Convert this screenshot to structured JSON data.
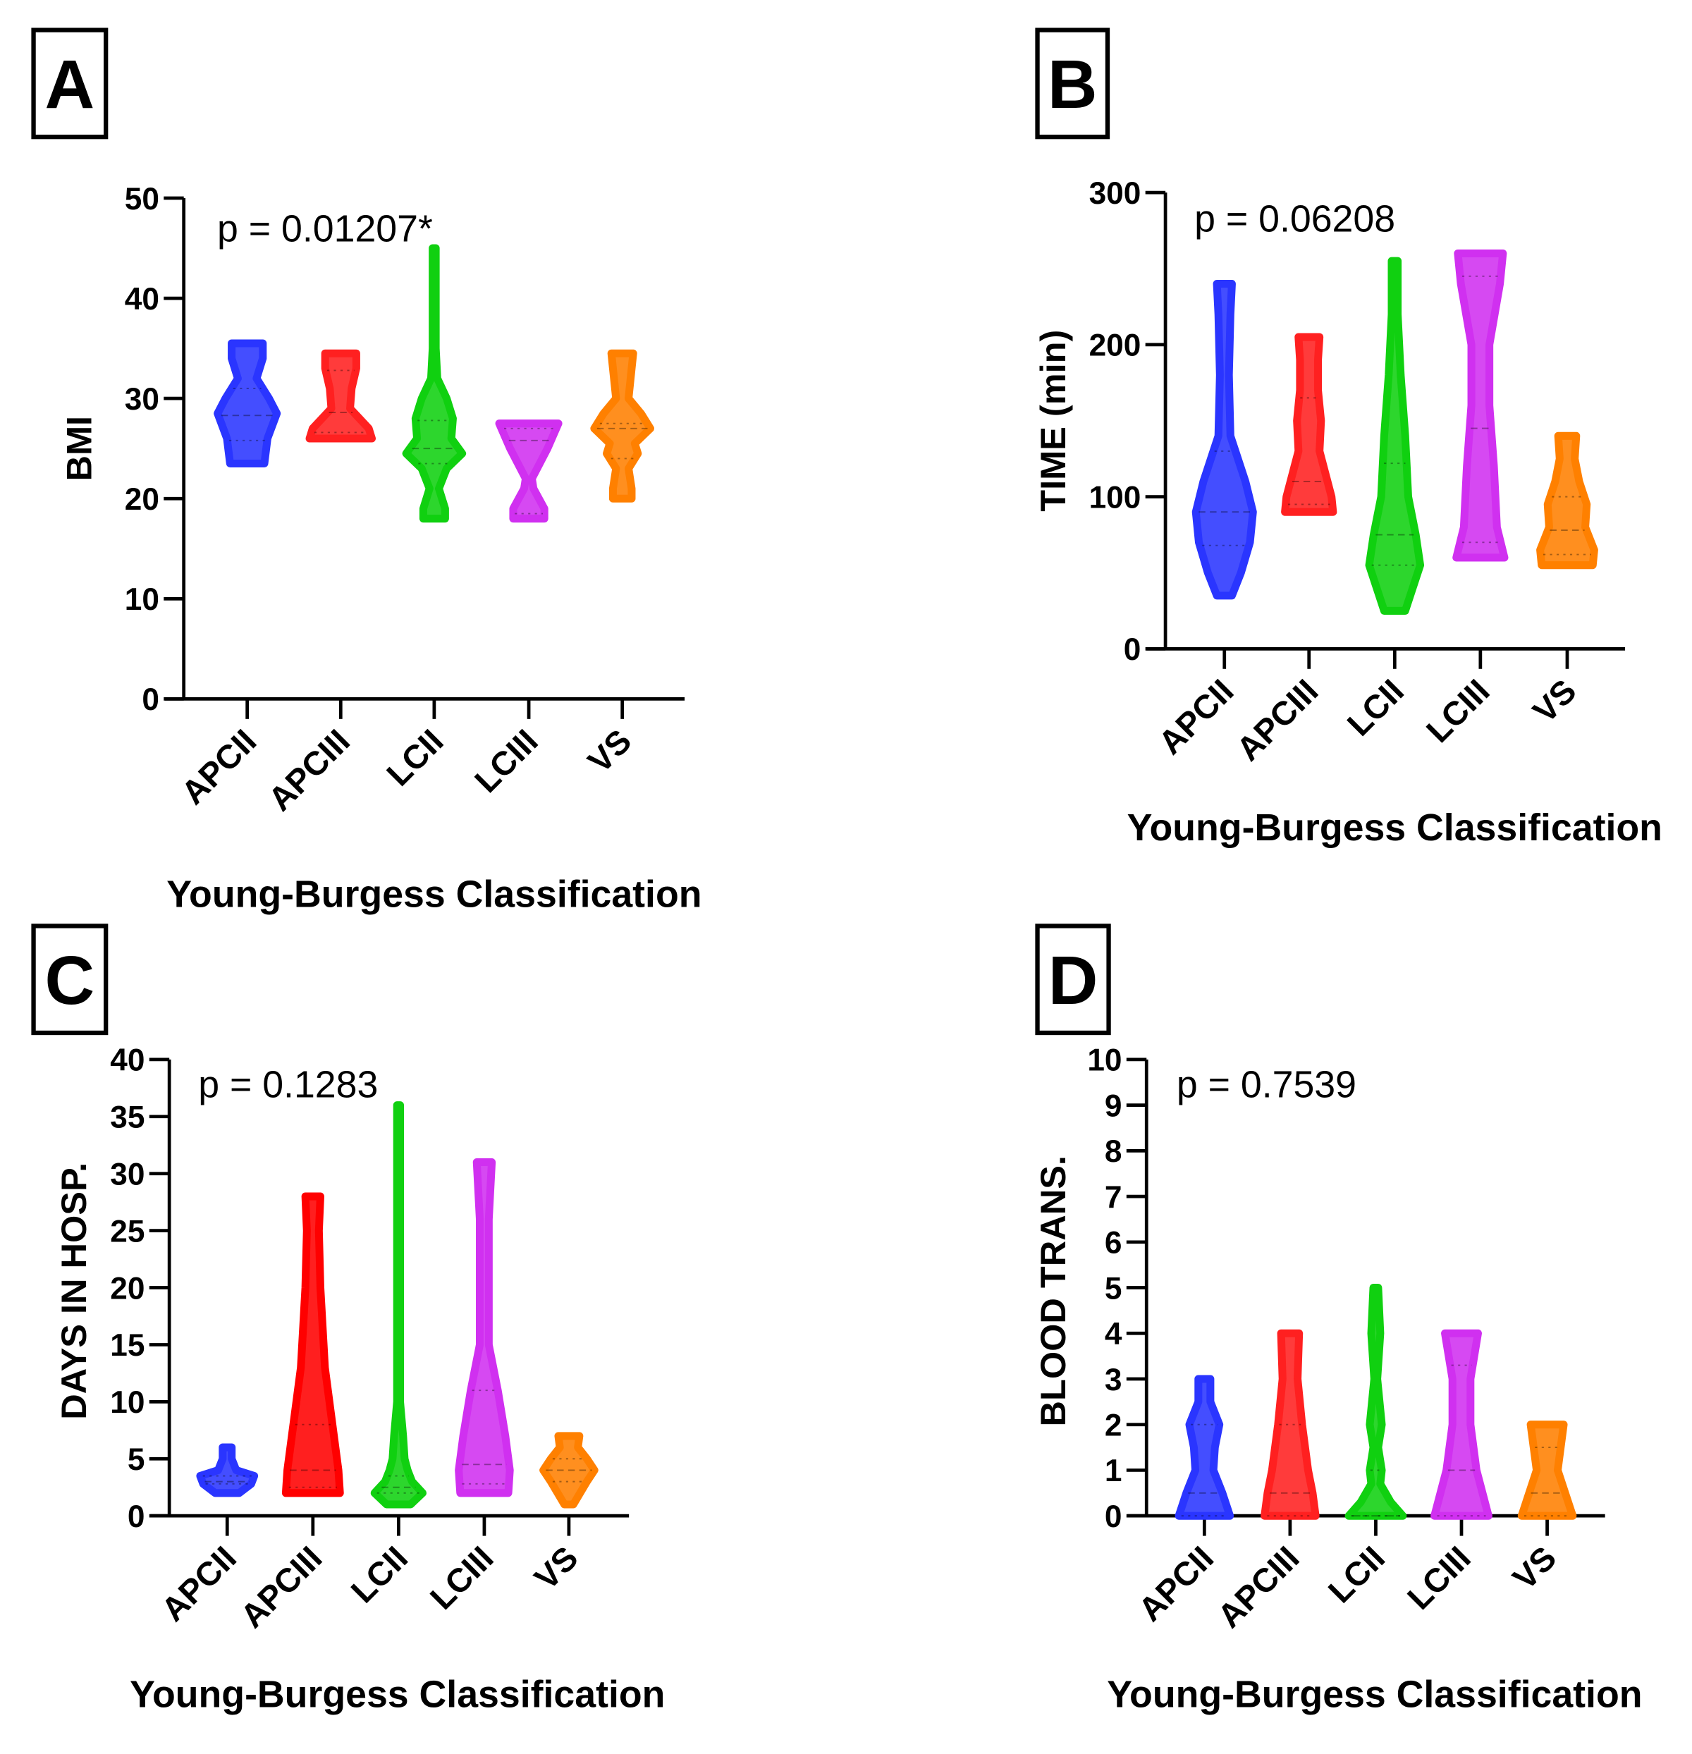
{
  "chart_data": [
    {
      "panel": "A",
      "type": "violin",
      "ylabel": "BMI",
      "xlabel": "Young-Burgess Classification",
      "annotation": "p = 0.01207*",
      "ylim": [
        0,
        50
      ],
      "yticks": [
        0,
        10,
        20,
        30,
        40,
        50
      ],
      "categories": [
        "APCII",
        "APCIII",
        "LCII",
        "LCIII",
        "VS"
      ],
      "series": [
        {
          "name": "APCII",
          "color": "#2a35ff",
          "median": 28.3,
          "q1": 25.8,
          "q3": 31,
          "profile": [
            [
              23.5,
              0.55
            ],
            [
              26,
              0.65
            ],
            [
              28.5,
              0.95
            ],
            [
              30,
              0.7
            ],
            [
              32,
              0.3
            ],
            [
              34,
              0.5
            ],
            [
              35.5,
              0.5
            ]
          ]
        },
        {
          "name": "APCIII",
          "color": "#ff2020",
          "median": 28.6,
          "q1": 26.6,
          "q3": 32.8,
          "profile": [
            [
              26,
              1
            ],
            [
              27,
              0.9
            ],
            [
              29,
              0.3
            ],
            [
              31,
              0.35
            ],
            [
              33,
              0.5
            ],
            [
              34.5,
              0.5
            ]
          ]
        },
        {
          "name": "LCII",
          "color": "#10d010",
          "median": 25,
          "q1": 23.5,
          "q3": 27.8,
          "profile": [
            [
              18,
              0.35
            ],
            [
              19,
              0.35
            ],
            [
              21,
              0.15
            ],
            [
              23,
              0.4
            ],
            [
              24.5,
              0.9
            ],
            [
              26,
              0.55
            ],
            [
              28,
              0.6
            ],
            [
              30,
              0.4
            ],
            [
              32,
              0.1
            ],
            [
              35,
              0.05
            ],
            [
              45,
              0.05
            ]
          ]
        },
        {
          "name": "LCIII",
          "color": "#d030f0",
          "median": 25.8,
          "q1": 18.5,
          "q3": 27,
          "profile": [
            [
              18,
              0.5
            ],
            [
              19,
              0.5
            ],
            [
              21,
              0.15
            ],
            [
              22,
              0.1
            ],
            [
              25,
              0.6
            ],
            [
              27.5,
              0.95
            ]
          ]
        },
        {
          "name": "VS",
          "color": "#ff8000",
          "median": 27,
          "q1": 24,
          "q3": 27.5,
          "profile": [
            [
              20,
              0.3
            ],
            [
              21,
              0.3
            ],
            [
              23,
              0.2
            ],
            [
              24.5,
              0.5
            ],
            [
              25.5,
              0.4
            ],
            [
              27,
              0.9
            ],
            [
              28.5,
              0.6
            ],
            [
              30,
              0.2
            ],
            [
              33,
              0.3
            ],
            [
              34.5,
              0.35
            ]
          ]
        }
      ]
    },
    {
      "panel": "B",
      "type": "violin",
      "ylabel": "TIME (min)",
      "xlabel": "Young-Burgess Classification",
      "annotation": "p = 0.06208",
      "ylim": [
        0,
        300
      ],
      "yticks": [
        0,
        100,
        200,
        300
      ],
      "categories": [
        "APCII",
        "APCIII",
        "LCII",
        "LCIII",
        "VS"
      ],
      "series": [
        {
          "name": "APCII",
          "color": "#2a35ff",
          "median": 90,
          "q1": 68,
          "q3": 130,
          "profile": [
            [
              35,
              0.25
            ],
            [
              50,
              0.55
            ],
            [
              70,
              0.85
            ],
            [
              90,
              0.95
            ],
            [
              110,
              0.7
            ],
            [
              140,
              0.2
            ],
            [
              180,
              0.15
            ],
            [
              220,
              0.2
            ],
            [
              240,
              0.25
            ]
          ]
        },
        {
          "name": "APCIII",
          "color": "#ff2020",
          "median": 110,
          "q1": 95,
          "q3": 165,
          "profile": [
            [
              90,
              0.8
            ],
            [
              100,
              0.75
            ],
            [
              115,
              0.55
            ],
            [
              130,
              0.35
            ],
            [
              150,
              0.4
            ],
            [
              170,
              0.3
            ],
            [
              190,
              0.3
            ],
            [
              205,
              0.35
            ]
          ]
        },
        {
          "name": "LCII",
          "color": "#10d010",
          "median": 75,
          "q1": 55,
          "q3": 122,
          "profile": [
            [
              25,
              0.35
            ],
            [
              40,
              0.6
            ],
            [
              55,
              0.85
            ],
            [
              75,
              0.7
            ],
            [
              100,
              0.45
            ],
            [
              140,
              0.35
            ],
            [
              180,
              0.2
            ],
            [
              220,
              0.1
            ],
            [
              255,
              0.1
            ]
          ]
        },
        {
          "name": "LCIII",
          "color": "#d030f0",
          "median": 145,
          "q1": 70,
          "q3": 245,
          "profile": [
            [
              60,
              0.8
            ],
            [
              80,
              0.55
            ],
            [
              120,
              0.45
            ],
            [
              160,
              0.3
            ],
            [
              200,
              0.3
            ],
            [
              240,
              0.65
            ],
            [
              260,
              0.75
            ]
          ]
        },
        {
          "name": "VS",
          "color": "#ff8000",
          "median": 78,
          "q1": 62,
          "q3": 100,
          "profile": [
            [
              55,
              0.85
            ],
            [
              65,
              0.9
            ],
            [
              80,
              0.6
            ],
            [
              95,
              0.65
            ],
            [
              110,
              0.4
            ],
            [
              125,
              0.25
            ],
            [
              140,
              0.3
            ]
          ]
        }
      ]
    },
    {
      "panel": "C",
      "type": "violin",
      "ylabel": "DAYS IN HOSP.",
      "xlabel": "Young-Burgess Classification",
      "annotation": "p = 0.1283",
      "ylim": [
        0,
        40
      ],
      "yticks": [
        0,
        5,
        10,
        15,
        20,
        25,
        30,
        35,
        40
      ],
      "categories": [
        "APCII",
        "APCIII",
        "LCII",
        "LCIII",
        "VS"
      ],
      "series": [
        {
          "name": "APCII",
          "color": "#2a35ff",
          "median": 3,
          "q1": 2.8,
          "q3": 3.5,
          "profile": [
            [
              2,
              0.4
            ],
            [
              2.8,
              0.8
            ],
            [
              3.5,
              0.9
            ],
            [
              4,
              0.3
            ],
            [
              5,
              0.15
            ],
            [
              6,
              0.15
            ]
          ]
        },
        {
          "name": "APCIII",
          "color": "#ff0000",
          "median": 4,
          "q1": 2.5,
          "q3": 8,
          "profile": [
            [
              2,
              0.9
            ],
            [
              4,
              0.85
            ],
            [
              8,
              0.65
            ],
            [
              13,
              0.4
            ],
            [
              20,
              0.25
            ],
            [
              25,
              0.2
            ],
            [
              28,
              0.25
            ]
          ]
        },
        {
          "name": "LCII",
          "color": "#10d010",
          "median": 2.5,
          "q1": 2,
          "q3": 3.5,
          "profile": [
            [
              1,
              0.4
            ],
            [
              2,
              0.8
            ],
            [
              3,
              0.45
            ],
            [
              4,
              0.3
            ],
            [
              5,
              0.2
            ],
            [
              7,
              0.15
            ],
            [
              10,
              0.05
            ],
            [
              23,
              0.05
            ],
            [
              36,
              0.05
            ]
          ]
        },
        {
          "name": "LCIII",
          "color": "#d030f0",
          "median": 4.5,
          "q1": 2.8,
          "q3": 11,
          "profile": [
            [
              2,
              0.8
            ],
            [
              4,
              0.85
            ],
            [
              7,
              0.7
            ],
            [
              11,
              0.45
            ],
            [
              15,
              0.15
            ],
            [
              26,
              0.15
            ],
            [
              31,
              0.25
            ]
          ]
        },
        {
          "name": "VS",
          "color": "#ff8000",
          "median": 4,
          "q1": 3,
          "q3": 5,
          "profile": [
            [
              1,
              0.15
            ],
            [
              3,
              0.6
            ],
            [
              4,
              0.85
            ],
            [
              5,
              0.6
            ],
            [
              6,
              0.3
            ],
            [
              7,
              0.35
            ]
          ]
        }
      ]
    },
    {
      "panel": "D",
      "type": "violin",
      "ylabel": "BLOOD TRANS.",
      "xlabel": "Young-Burgess Classification",
      "annotation": "p = 0.7539",
      "ylim": [
        0,
        10
      ],
      "yticks": [
        0,
        1,
        2,
        3,
        4,
        5,
        6,
        7,
        8,
        9,
        10
      ],
      "categories": [
        "APCII",
        "APCIII",
        "LCII",
        "LCIII",
        "VS"
      ],
      "series": [
        {
          "name": "APCII",
          "color": "#2a35ff",
          "median": 0.5,
          "q1": 0,
          "q3": 2,
          "profile": [
            [
              0,
              0.85
            ],
            [
              0.5,
              0.6
            ],
            [
              1,
              0.3
            ],
            [
              1.5,
              0.35
            ],
            [
              2,
              0.5
            ],
            [
              2.5,
              0.2
            ],
            [
              3,
              0.2
            ]
          ]
        },
        {
          "name": "APCIII",
          "color": "#ff2020",
          "median": 0.5,
          "q1": 0,
          "q3": 2,
          "profile": [
            [
              0,
              0.85
            ],
            [
              0.5,
              0.75
            ],
            [
              1,
              0.6
            ],
            [
              2,
              0.4
            ],
            [
              3,
              0.25
            ],
            [
              4,
              0.3
            ]
          ]
        },
        {
          "name": "LCII",
          "color": "#10d010",
          "median": 0,
          "q1": 0,
          "q3": 1,
          "profile": [
            [
              0,
              0.9
            ],
            [
              0.3,
              0.5
            ],
            [
              0.7,
              0.15
            ],
            [
              1,
              0.2
            ],
            [
              1.5,
              0.08
            ],
            [
              2,
              0.2
            ],
            [
              3,
              0.05
            ],
            [
              4,
              0.15
            ],
            [
              5,
              0.08
            ]
          ]
        },
        {
          "name": "LCIII",
          "color": "#d030f0",
          "median": 1,
          "q1": 0,
          "q3": 3.3,
          "profile": [
            [
              0,
              0.9
            ],
            [
              0.5,
              0.7
            ],
            [
              1,
              0.5
            ],
            [
              2,
              0.3
            ],
            [
              3,
              0.3
            ],
            [
              4,
              0.55
            ]
          ]
        },
        {
          "name": "VS",
          "color": "#ff8000",
          "median": 0.5,
          "q1": 0,
          "q3": 1.5,
          "profile": [
            [
              0,
              0.85
            ],
            [
              0.5,
              0.6
            ],
            [
              1,
              0.35
            ],
            [
              1.5,
              0.45
            ],
            [
              2,
              0.55
            ]
          ]
        }
      ]
    }
  ]
}
